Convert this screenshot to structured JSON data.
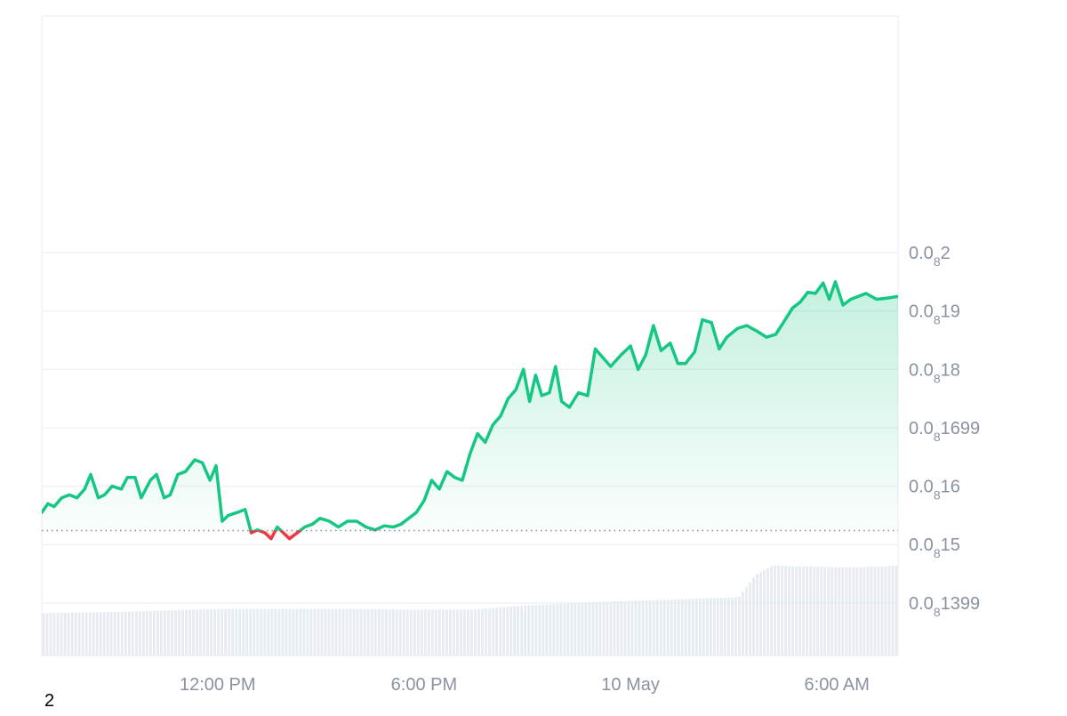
{
  "chart_data": {
    "type": "area",
    "series": [
      {
        "points": [
          [
            0,
            0.081555
          ],
          [
            0.4,
            0.08157
          ],
          [
            0.8,
            0.081565
          ],
          [
            1.3,
            0.08158
          ],
          [
            1.8,
            0.081585
          ],
          [
            2.3,
            0.08158
          ],
          [
            2.8,
            0.081595
          ],
          [
            3.2,
            0.08162
          ],
          [
            3.7,
            0.08158
          ],
          [
            4.1,
            0.081585
          ],
          [
            4.6,
            0.0816
          ],
          [
            5.2,
            0.081595
          ],
          [
            5.6,
            0.081615
          ],
          [
            6.1,
            0.081615
          ],
          [
            6.5,
            0.08158
          ],
          [
            7.1,
            0.08161
          ],
          [
            7.5,
            0.08162
          ],
          [
            8.0,
            0.08158
          ],
          [
            8.4,
            0.081585
          ],
          [
            8.9,
            0.08162
          ],
          [
            9.4,
            0.081625
          ],
          [
            10.0,
            0.081645
          ],
          [
            10.5,
            0.08164
          ],
          [
            11.0,
            0.08161
          ],
          [
            11.4,
            0.081635
          ],
          [
            11.8,
            0.08154
          ],
          [
            12.2,
            0.08155
          ],
          [
            12.8,
            0.081555
          ],
          [
            13.3,
            0.08156
          ],
          [
            13.7,
            0.08152
          ],
          [
            14.1,
            0.081525
          ],
          [
            14.6,
            0.08152
          ],
          [
            15.0,
            0.08151
          ],
          [
            15.4,
            0.08153
          ],
          [
            15.8,
            0.08152
          ],
          [
            16.2,
            0.08151
          ],
          [
            16.7,
            0.08152
          ],
          [
            17.2,
            0.08153
          ],
          [
            17.7,
            0.081535
          ],
          [
            18.2,
            0.081545
          ],
          [
            18.8,
            0.08154
          ],
          [
            19.4,
            0.08153
          ],
          [
            20.0,
            0.08154
          ],
          [
            20.6,
            0.08154
          ],
          [
            21.2,
            0.08153
          ],
          [
            21.8,
            0.081525
          ],
          [
            22.4,
            0.081532
          ],
          [
            23.0,
            0.08153
          ],
          [
            23.5,
            0.081535
          ],
          [
            24.0,
            0.081545
          ],
          [
            24.5,
            0.081555
          ],
          [
            25.0,
            0.081575
          ],
          [
            25.5,
            0.08161
          ],
          [
            26.0,
            0.081595
          ],
          [
            26.5,
            0.081625
          ],
          [
            27.0,
            0.081615
          ],
          [
            27.5,
            0.08161
          ],
          [
            28.0,
            0.081655
          ],
          [
            28.5,
            0.08169
          ],
          [
            29.0,
            0.081675
          ],
          [
            29.5,
            0.081705
          ],
          [
            30.0,
            0.08172
          ],
          [
            30.5,
            0.08175
          ],
          [
            31.0,
            0.081765
          ],
          [
            31.5,
            0.0818
          ],
          [
            31.9,
            0.081745
          ],
          [
            32.3,
            0.08179
          ],
          [
            32.7,
            0.081755
          ],
          [
            33.2,
            0.08176
          ],
          [
            33.6,
            0.081805
          ],
          [
            34.0,
            0.081745
          ],
          [
            34.5,
            0.081735
          ],
          [
            35.1,
            0.08176
          ],
          [
            35.7,
            0.081755
          ],
          [
            36.2,
            0.081835
          ],
          [
            36.7,
            0.08182
          ],
          [
            37.2,
            0.081805
          ],
          [
            37.9,
            0.081825
          ],
          [
            38.5,
            0.08184
          ],
          [
            39.0,
            0.0818
          ],
          [
            39.5,
            0.081825
          ],
          [
            40.0,
            0.081875
          ],
          [
            40.5,
            0.081832
          ],
          [
            41.1,
            0.081845
          ],
          [
            41.6,
            0.08181
          ],
          [
            42.1,
            0.08181
          ],
          [
            42.7,
            0.08183
          ],
          [
            43.2,
            0.081885
          ],
          [
            43.8,
            0.08188
          ],
          [
            44.3,
            0.081835
          ],
          [
            44.8,
            0.081855
          ],
          [
            45.5,
            0.08187
          ],
          [
            46.1,
            0.081875
          ],
          [
            46.8,
            0.081865
          ],
          [
            47.4,
            0.081855
          ],
          [
            48.0,
            0.08186
          ],
          [
            48.5,
            0.08188
          ],
          [
            49.1,
            0.081905
          ],
          [
            49.6,
            0.081915
          ],
          [
            50.1,
            0.081932
          ],
          [
            50.6,
            0.08193
          ],
          [
            51.1,
            0.081948
          ],
          [
            51.5,
            0.08192
          ],
          [
            51.9,
            0.08195
          ],
          [
            52.4,
            0.08191
          ],
          [
            52.9,
            0.08192
          ],
          [
            53.4,
            0.081925
          ],
          [
            53.9,
            0.08193
          ],
          [
            54.6,
            0.08192
          ],
          [
            55.3,
            0.081922
          ],
          [
            56.0,
            0.081925
          ]
        ]
      }
    ],
    "baseline": 0.081524,
    "ylim": [
      0.08131,
      0.082405
    ],
    "y_ticks": [
      {
        "value": 0.082,
        "prefix": "0.0",
        "sub": "8",
        "suffix": "2"
      },
      {
        "value": 0.0819,
        "prefix": "0.0",
        "sub": "8",
        "suffix": "19"
      },
      {
        "value": 0.0818,
        "prefix": "0.0",
        "sub": "8",
        "suffix": "18"
      },
      {
        "value": 0.0817,
        "prefix": "0.0",
        "sub": "8",
        "suffix": "1699"
      },
      {
        "value": 0.0816,
        "prefix": "0.0",
        "sub": "8",
        "suffix": "16"
      },
      {
        "value": 0.0815,
        "prefix": "0.0",
        "sub": "8",
        "suffix": "15"
      },
      {
        "value": 0.0814,
        "prefix": "0.0",
        "sub": "8",
        "suffix": "1399"
      }
    ],
    "x_ticks": [
      {
        "value": 11.5,
        "label": "12:00 PM"
      },
      {
        "value": 25.0,
        "label": "6:00 PM"
      },
      {
        "value": 38.5,
        "label": "10 May"
      },
      {
        "value": 52.0,
        "label": "6:00 AM"
      }
    ],
    "volume_shape": [
      [
        0,
        0.47
      ],
      [
        6,
        0.49
      ],
      [
        12,
        0.52
      ],
      [
        20,
        0.52
      ],
      [
        23.5,
        0.51
      ],
      [
        28,
        0.51
      ],
      [
        32,
        0.56
      ],
      [
        37,
        0.6
      ],
      [
        41,
        0.62
      ],
      [
        45.6,
        0.65
      ],
      [
        46.7,
        0.9
      ],
      [
        47.8,
        1.0
      ],
      [
        53,
        0.98
      ],
      [
        56,
        1.0
      ]
    ],
    "colors": {
      "up": "#16c784",
      "down": "#ea3943",
      "grid": "#eff2f5",
      "axis_text": "#8a92a2",
      "volume": "#e6ebf1",
      "baseline": "#858ca2"
    }
  },
  "footer_note": "2"
}
